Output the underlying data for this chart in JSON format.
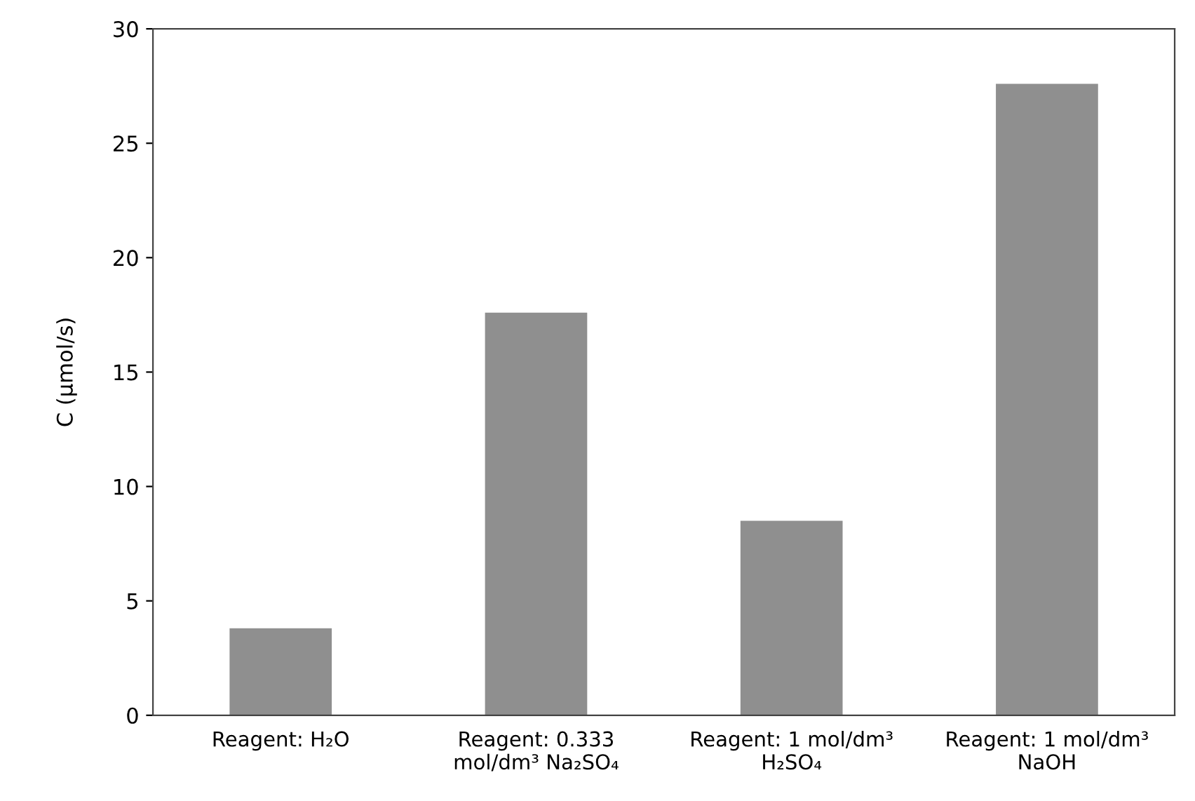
{
  "chart_data": {
    "type": "bar",
    "categories": [
      "Reagent: H₂O",
      "Reagent: 0.333 mol/dm³ Na₂SO₄",
      "Reagent: 1 mol/dm³ H₂SO₄",
      "Reagent: 1 mol/dm³ NaOH"
    ],
    "values": [
      3.8,
      17.6,
      8.5,
      27.6
    ],
    "color": "#8f8f8f",
    "ylabel": "C (µmol/s)",
    "ylim": [
      0,
      30
    ],
    "yticks": [
      0,
      5,
      10,
      15,
      20,
      25,
      30
    ],
    "grid": false
  }
}
